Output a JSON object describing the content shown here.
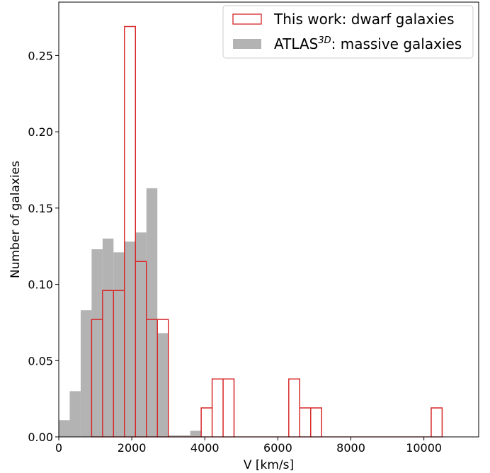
{
  "chart_data": {
    "type": "bar",
    "xlabel": "V [km/s]",
    "ylabel": "Number of galaxies",
    "xlim": [
      0,
      11500
    ],
    "ylim": [
      0,
      0.285
    ],
    "xticks": [
      0,
      2000,
      4000,
      6000,
      8000,
      10000
    ],
    "xtick_labels": [
      "0",
      "2000",
      "4000",
      "6000",
      "8000",
      "10000"
    ],
    "yticks": [
      0.0,
      0.05,
      0.1,
      0.15,
      0.2,
      0.25
    ],
    "ytick_labels": [
      "0.00",
      "0.05",
      "0.10",
      "0.15",
      "0.20",
      "0.25"
    ],
    "legend_position": "top-right",
    "series": [
      {
        "name_prefix": "ATLAS",
        "name_sup": "3D",
        "name_suffix": ": massive galaxies",
        "style": "filled",
        "color": "#b3b3b3",
        "bin_edges": [
          0,
          300,
          600,
          900,
          1200,
          1500,
          1800,
          2100,
          2400,
          2700,
          3000,
          3300,
          3600,
          3900,
          4200,
          4500,
          4800,
          5100,
          5400,
          5700,
          6000,
          6300,
          6600,
          6900,
          7200,
          7500,
          7800,
          8100,
          8400,
          8700,
          9000,
          9300,
          9600,
          9900,
          10200,
          10500,
          10800
        ],
        "values": [
          0.011,
          0.03,
          0.083,
          0.123,
          0.13,
          0.121,
          0.128,
          0.134,
          0.163,
          0.068,
          0.001,
          0.001,
          0.004,
          0.0,
          0.0,
          0.0,
          0.0,
          0.0,
          0.0,
          0.0,
          0.0,
          0.0,
          0.0,
          0.0,
          0.0,
          0.0,
          0.0,
          0.0,
          0.0,
          0.0,
          0.0,
          0.0,
          0.0,
          0.0,
          0.0,
          0.0
        ]
      },
      {
        "name": "This work: dwarf galaxies",
        "style": "step",
        "color": "#d62728",
        "bin_edges": [
          900,
          1200,
          1500,
          1800,
          2100,
          2400,
          2700,
          3000,
          3300,
          3600,
          3900,
          4200,
          4500,
          4800,
          5100,
          5400,
          5700,
          6000,
          6300,
          6600,
          6900,
          7200,
          7500,
          7800,
          8100,
          8400,
          8700,
          9000,
          9300,
          9600,
          9900,
          10200,
          10500
        ],
        "values": [
          0.077,
          0.096,
          0.096,
          0.269,
          0.115,
          0.077,
          0.077,
          0.0,
          0.0,
          0.0,
          0.019,
          0.038,
          0.038,
          0.0,
          0.0,
          0.0,
          0.0,
          0.0,
          0.038,
          0.019,
          0.019,
          0.0,
          0.0,
          0.0,
          0.0,
          0.0,
          0.0,
          0.0,
          0.0,
          0.0,
          0.0,
          0.019
        ]
      }
    ]
  }
}
